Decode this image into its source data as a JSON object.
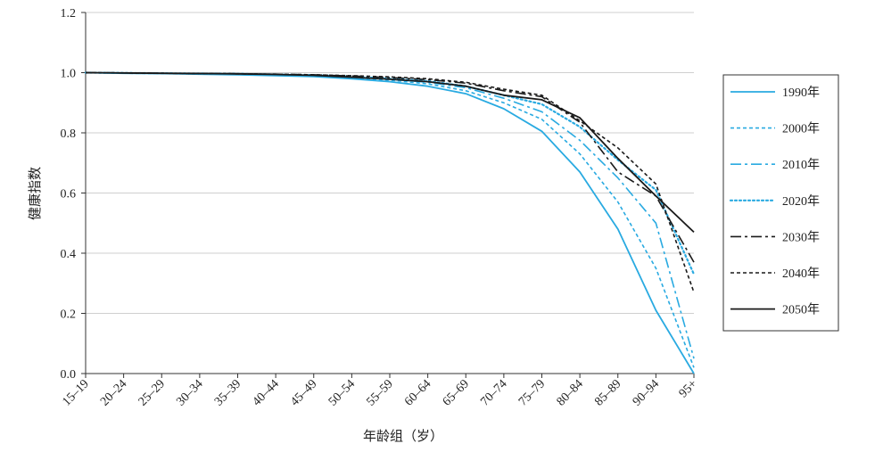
{
  "chart_data": {
    "type": "line",
    "title": "",
    "xlabel": "年龄组（岁）",
    "ylabel": "健康指数",
    "ylim": [
      0,
      1.2
    ],
    "yticks": [
      "0.0",
      "0.2",
      "0.4",
      "0.6",
      "0.8",
      "1.0",
      "1.2"
    ],
    "grid": "horizontal",
    "legend_position": "right",
    "categories": [
      "15–19",
      "20–24",
      "25–29",
      "30–34",
      "35–39",
      "40–44",
      "45–49",
      "50–54",
      "55–59",
      "60–64",
      "65–69",
      "70–74",
      "75–79",
      "80–84",
      "85–89",
      "90–94",
      "95+"
    ],
    "series": [
      {
        "name": "1990年",
        "color": "#29aae1",
        "dash": "solid",
        "weight": 1.8,
        "values": [
          1.0,
          0.998,
          0.997,
          0.995,
          0.993,
          0.99,
          0.987,
          0.98,
          0.97,
          0.955,
          0.93,
          0.88,
          0.805,
          0.67,
          0.48,
          0.21,
          0.0
        ]
      },
      {
        "name": "2000年",
        "color": "#29aae1",
        "dash": "dash",
        "weight": 1.6,
        "values": [
          1.0,
          0.998,
          0.997,
          0.996,
          0.994,
          0.992,
          0.989,
          0.983,
          0.975,
          0.963,
          0.94,
          0.9,
          0.845,
          0.73,
          0.57,
          0.35,
          0.02
        ]
      },
      {
        "name": "2010年",
        "color": "#29aae1",
        "dash": "dashdot",
        "weight": 1.6,
        "values": [
          1.0,
          0.999,
          0.998,
          0.996,
          0.995,
          0.993,
          0.99,
          0.985,
          0.978,
          0.968,
          0.95,
          0.915,
          0.87,
          0.775,
          0.65,
          0.5,
          0.05
        ]
      },
      {
        "name": "2020年",
        "color": "#29aae1",
        "dash": "dot",
        "weight": 2.2,
        "values": [
          1.0,
          0.999,
          0.998,
          0.997,
          0.996,
          0.994,
          0.992,
          0.987,
          0.98,
          0.972,
          0.955,
          0.925,
          0.895,
          0.82,
          0.71,
          0.61,
          0.33
        ]
      },
      {
        "name": "2030年",
        "color": "#1a1a1a",
        "dash": "dashdot",
        "weight": 1.6,
        "values": [
          1.0,
          0.999,
          0.998,
          0.997,
          0.996,
          0.995,
          0.993,
          0.989,
          0.984,
          0.977,
          0.965,
          0.94,
          0.92,
          0.835,
          0.67,
          0.59,
          0.37
        ]
      },
      {
        "name": "2040年",
        "color": "#1a1a1a",
        "dash": "dash",
        "weight": 1.6,
        "values": [
          1.0,
          0.999,
          0.998,
          0.997,
          0.996,
          0.995,
          0.993,
          0.99,
          0.986,
          0.98,
          0.968,
          0.945,
          0.925,
          0.84,
          0.75,
          0.63,
          0.27
        ]
      },
      {
        "name": "2050年",
        "color": "#1a1a1a",
        "dash": "solid",
        "weight": 1.8,
        "values": [
          1.0,
          0.999,
          0.998,
          0.997,
          0.996,
          0.994,
          0.991,
          0.985,
          0.978,
          0.97,
          0.955,
          0.925,
          0.91,
          0.85,
          0.715,
          0.59,
          0.47
        ]
      }
    ]
  }
}
